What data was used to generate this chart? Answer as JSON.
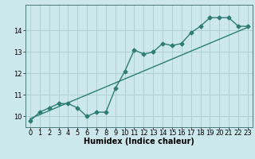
{
  "title": "",
  "xlabel": "Humidex (Indice chaleur)",
  "ylabel": "",
  "background_color": "#cde8ec",
  "line_color": "#2d7d74",
  "grid_color": "#b0d0d4",
  "x_data": [
    0,
    1,
    2,
    3,
    4,
    5,
    6,
    7,
    8,
    9,
    10,
    11,
    12,
    13,
    14,
    15,
    16,
    17,
    18,
    19,
    20,
    21,
    22,
    23
  ],
  "y_data": [
    9.8,
    10.2,
    10.4,
    10.6,
    10.6,
    10.4,
    10.0,
    10.2,
    10.2,
    11.3,
    12.1,
    13.1,
    12.9,
    13.0,
    13.4,
    13.3,
    13.4,
    13.9,
    14.2,
    14.6,
    14.6,
    14.6,
    14.2,
    14.2
  ],
  "trend_x": [
    0,
    23
  ],
  "trend_y": [
    9.9,
    14.15
  ],
  "xlim": [
    -0.5,
    23.5
  ],
  "ylim": [
    9.5,
    15.2
  ],
  "yticks": [
    10,
    11,
    12,
    13,
    14
  ],
  "ytick_labels": [
    "10",
    "11",
    "12",
    "13",
    "14"
  ],
  "xticks": [
    0,
    1,
    2,
    3,
    4,
    5,
    6,
    7,
    8,
    9,
    10,
    11,
    12,
    13,
    14,
    15,
    16,
    17,
    18,
    19,
    20,
    21,
    22,
    23
  ],
  "marker": "D",
  "markersize": 2.5,
  "linewidth": 1.0,
  "xlabel_fontsize": 7,
  "tick_fontsize": 6
}
